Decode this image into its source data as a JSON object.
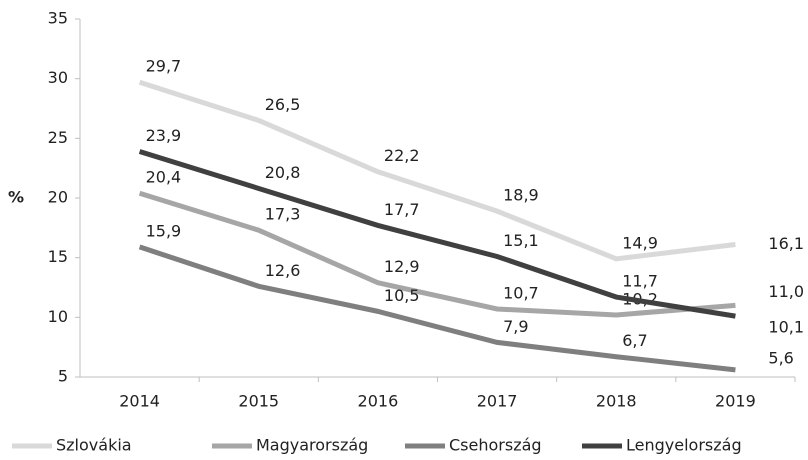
{
  "chart_data": {
    "type": "line",
    "y_label": "%",
    "categories": [
      "2014",
      "2015",
      "2016",
      "2017",
      "2018",
      "2019"
    ],
    "series": [
      {
        "name": "Szlovákia",
        "color": "#d9d9d9",
        "values": [
          29.7,
          26.5,
          22.2,
          18.9,
          14.9,
          16.1
        ],
        "value_labels": [
          "29,7",
          "26,5",
          "22,2",
          "18,9",
          "14,9",
          "16,1"
        ]
      },
      {
        "name": "Magyarország",
        "color": "#a6a6a6",
        "values": [
          20.4,
          17.3,
          12.9,
          10.7,
          10.2,
          11.0
        ],
        "value_labels": [
          "20,4",
          "17,3",
          "12,9",
          "10,7",
          "10,2",
          "11,0"
        ]
      },
      {
        "name": "Csehország",
        "color": "#7f7f7f",
        "values": [
          15.9,
          12.6,
          10.5,
          7.9,
          6.7,
          5.6
        ],
        "value_labels": [
          "15,9",
          "12,6",
          "10,5",
          "7,9",
          "6,7",
          "5,6"
        ]
      },
      {
        "name": "Lengyelország",
        "color": "#404040",
        "values": [
          23.9,
          20.8,
          17.7,
          15.1,
          11.7,
          10.1
        ],
        "value_labels": [
          "23,9",
          "20,8",
          "17,7",
          "15,1",
          "11,7",
          "10,1"
        ]
      }
    ],
    "ylim": [
      5,
      35
    ],
    "yticks": [
      5,
      10,
      15,
      20,
      25,
      30,
      35
    ],
    "grid": false,
    "legend": "bottom"
  }
}
